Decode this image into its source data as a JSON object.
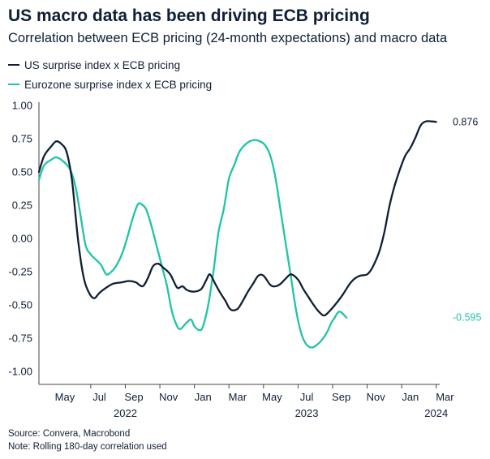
{
  "header": {
    "title": "US macro data has been driving ECB pricing",
    "subtitle": "Correlation between ECB pricing (24-month expectations) and macro data"
  },
  "colors": {
    "us": "#0f1f35",
    "ez": "#1fc4a6",
    "axis": "#333333",
    "text": "#0f1f35"
  },
  "chart_data": {
    "type": "line",
    "title": "US macro data has been driving ECB pricing",
    "subtitle": "Correlation between ECB pricing (24-month expectations) and macro data",
    "xlabel": "",
    "ylabel": "",
    "ylim": [
      -1.0,
      1.0
    ],
    "xlim": [
      2.0,
      25.2
    ],
    "y_ticks": [
      1.0,
      0.75,
      0.5,
      0.25,
      0.0,
      -0.25,
      -0.5,
      -0.75,
      -1.0
    ],
    "y_tick_labels": [
      "1.00",
      "0.75",
      "0.50",
      "0.25",
      "0.00",
      "-0.25",
      "-0.50",
      "-0.75",
      "-1.00"
    ],
    "x_ticks": [
      {
        "x": 3.5,
        "label": "May"
      },
      {
        "x": 5.5,
        "label": "Jul"
      },
      {
        "x": 7.5,
        "label": "Sep"
      },
      {
        "x": 9.5,
        "label": "Nov"
      },
      {
        "x": 11.5,
        "label": "Jan"
      },
      {
        "x": 13.5,
        "label": "Mar"
      },
      {
        "x": 15.5,
        "label": "May"
      },
      {
        "x": 17.5,
        "label": "Jul"
      },
      {
        "x": 19.5,
        "label": "Sep"
      },
      {
        "x": 21.5,
        "label": "Nov"
      },
      {
        "x": 23.5,
        "label": "Jan"
      },
      {
        "x": 25.5,
        "label": "Mar"
      }
    ],
    "x_tick_marks": [
      5,
      7,
      9,
      11,
      13,
      15,
      17,
      19,
      21,
      23,
      25
    ],
    "year_labels": [
      {
        "x": 7,
        "label": "2022"
      },
      {
        "x": 17.5,
        "label": "2023"
      },
      {
        "x": 25,
        "label": "2024"
      }
    ],
    "grid": false,
    "legend": "top-left",
    "series": [
      {
        "name": "US surprise index x ECB pricing",
        "color": "#0f1f35",
        "end_label": "0.876",
        "points": [
          [
            2.0,
            0.5
          ],
          [
            2.3,
            0.62
          ],
          [
            2.7,
            0.69
          ],
          [
            3.0,
            0.73
          ],
          [
            3.3,
            0.71
          ],
          [
            3.6,
            0.65
          ],
          [
            3.9,
            0.45
          ],
          [
            4.1,
            0.2
          ],
          [
            4.3,
            -0.05
          ],
          [
            4.6,
            -0.3
          ],
          [
            4.9,
            -0.41
          ],
          [
            5.2,
            -0.45
          ],
          [
            5.5,
            -0.41
          ],
          [
            5.9,
            -0.37
          ],
          [
            6.3,
            -0.34
          ],
          [
            6.8,
            -0.33
          ],
          [
            7.2,
            -0.32
          ],
          [
            7.6,
            -0.33
          ],
          [
            8.0,
            -0.36
          ],
          [
            8.3,
            -0.3
          ],
          [
            8.6,
            -0.21
          ],
          [
            8.9,
            -0.19
          ],
          [
            9.2,
            -0.22
          ],
          [
            9.6,
            -0.27
          ],
          [
            10.0,
            -0.37
          ],
          [
            10.3,
            -0.36
          ],
          [
            10.6,
            -0.39
          ],
          [
            11.0,
            -0.4
          ],
          [
            11.4,
            -0.38
          ],
          [
            11.7,
            -0.31
          ],
          [
            11.9,
            -0.27
          ],
          [
            12.2,
            -0.34
          ],
          [
            12.5,
            -0.41
          ],
          [
            12.8,
            -0.47
          ],
          [
            13.0,
            -0.52
          ],
          [
            13.2,
            -0.54
          ],
          [
            13.5,
            -0.53
          ],
          [
            13.8,
            -0.47
          ],
          [
            14.1,
            -0.4
          ],
          [
            14.4,
            -0.34
          ],
          [
            14.7,
            -0.28
          ],
          [
            15.0,
            -0.28
          ],
          [
            15.4,
            -0.35
          ],
          [
            15.7,
            -0.36
          ],
          [
            16.0,
            -0.34
          ],
          [
            16.3,
            -0.3
          ],
          [
            16.6,
            -0.27
          ],
          [
            17.0,
            -0.31
          ],
          [
            17.3,
            -0.38
          ],
          [
            17.6,
            -0.44
          ],
          [
            17.9,
            -0.5
          ],
          [
            18.2,
            -0.55
          ],
          [
            18.5,
            -0.58
          ],
          [
            18.8,
            -0.55
          ],
          [
            19.2,
            -0.49
          ],
          [
            19.6,
            -0.42
          ],
          [
            20.0,
            -0.34
          ],
          [
            20.3,
            -0.3
          ],
          [
            20.6,
            -0.28
          ],
          [
            21.0,
            -0.27
          ],
          [
            21.3,
            -0.22
          ],
          [
            21.7,
            -0.1
          ],
          [
            22.0,
            0.05
          ],
          [
            22.3,
            0.25
          ],
          [
            22.6,
            0.4
          ],
          [
            22.9,
            0.52
          ],
          [
            23.2,
            0.62
          ],
          [
            23.5,
            0.68
          ],
          [
            23.8,
            0.76
          ],
          [
            24.1,
            0.85
          ],
          [
            24.4,
            0.88
          ],
          [
            24.7,
            0.88
          ],
          [
            25.0,
            0.876
          ]
        ]
      },
      {
        "name": "Eurozone surprise index x ECB pricing",
        "color": "#1fc4a6",
        "end_label": "-0.595",
        "points": [
          [
            2.0,
            0.44
          ],
          [
            2.3,
            0.55
          ],
          [
            2.7,
            0.59
          ],
          [
            3.0,
            0.61
          ],
          [
            3.4,
            0.58
          ],
          [
            3.8,
            0.52
          ],
          [
            4.1,
            0.4
          ],
          [
            4.4,
            0.18
          ],
          [
            4.7,
            -0.05
          ],
          [
            5.0,
            -0.12
          ],
          [
            5.3,
            -0.16
          ],
          [
            5.6,
            -0.2
          ],
          [
            5.9,
            -0.27
          ],
          [
            6.2,
            -0.25
          ],
          [
            6.5,
            -0.2
          ],
          [
            6.8,
            -0.12
          ],
          [
            7.1,
            0.0
          ],
          [
            7.4,
            0.14
          ],
          [
            7.7,
            0.25
          ],
          [
            7.9,
            0.26
          ],
          [
            8.2,
            0.22
          ],
          [
            8.5,
            0.1
          ],
          [
            8.8,
            -0.05
          ],
          [
            9.1,
            -0.2
          ],
          [
            9.4,
            -0.35
          ],
          [
            9.7,
            -0.55
          ],
          [
            10.0,
            -0.66
          ],
          [
            10.2,
            -0.68
          ],
          [
            10.5,
            -0.64
          ],
          [
            10.8,
            -0.61
          ],
          [
            11.0,
            -0.66
          ],
          [
            11.3,
            -0.69
          ],
          [
            11.5,
            -0.66
          ],
          [
            11.8,
            -0.5
          ],
          [
            12.1,
            -0.25
          ],
          [
            12.4,
            0.05
          ],
          [
            12.7,
            0.22
          ],
          [
            13.0,
            0.45
          ],
          [
            13.3,
            0.55
          ],
          [
            13.6,
            0.65
          ],
          [
            13.9,
            0.7
          ],
          [
            14.2,
            0.73
          ],
          [
            14.5,
            0.74
          ],
          [
            14.8,
            0.73
          ],
          [
            15.1,
            0.7
          ],
          [
            15.4,
            0.62
          ],
          [
            15.7,
            0.45
          ],
          [
            16.0,
            0.2
          ],
          [
            16.3,
            -0.05
          ],
          [
            16.6,
            -0.3
          ],
          [
            16.9,
            -0.55
          ],
          [
            17.2,
            -0.72
          ],
          [
            17.5,
            -0.8
          ],
          [
            17.8,
            -0.82
          ],
          [
            18.1,
            -0.8
          ],
          [
            18.4,
            -0.76
          ],
          [
            18.7,
            -0.7
          ],
          [
            18.9,
            -0.64
          ],
          [
            19.1,
            -0.6
          ],
          [
            19.4,
            -0.55
          ],
          [
            19.8,
            -0.595
          ]
        ]
      }
    ]
  },
  "legend": {
    "us_label": "US surprise index x ECB pricing",
    "ez_label": "Eurozone surprise index x ECB pricing"
  },
  "footer": {
    "source": "Source: Convera, Macrobond",
    "note": "Note: Rolling 180-day correlation used"
  }
}
